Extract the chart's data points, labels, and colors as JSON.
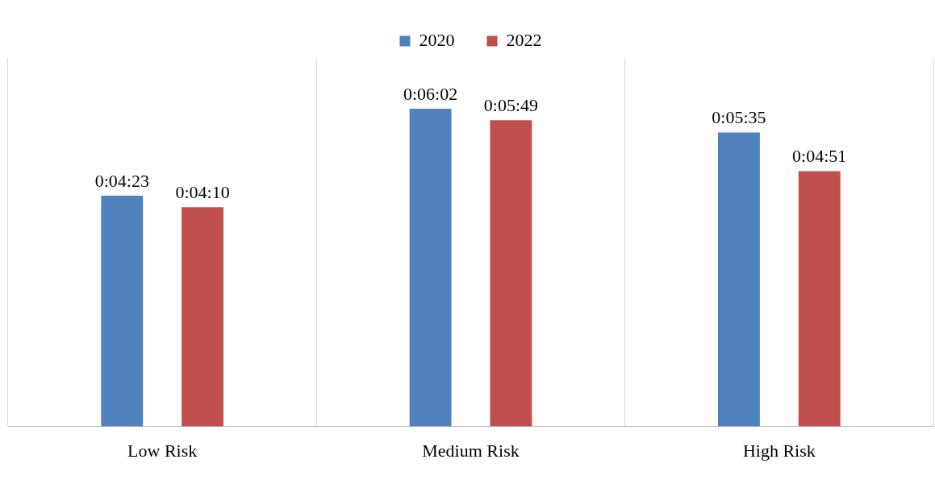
{
  "chart_data": {
    "type": "bar",
    "categories": [
      "Low Risk",
      "Medium Risk",
      "High Risk"
    ],
    "series": [
      {
        "name": "2020",
        "color": "#4f81bd",
        "values": [
          263,
          362,
          335
        ],
        "value_labels": [
          "0:04:23",
          "0:06:02",
          "0:05:35"
        ]
      },
      {
        "name": "2022",
        "color": "#c0504d",
        "values": [
          250,
          349,
          291
        ],
        "value_labels": [
          "0:04:10",
          "0:05:49",
          "0:04:51"
        ]
      }
    ],
    "grid": "x",
    "legend": "top"
  }
}
